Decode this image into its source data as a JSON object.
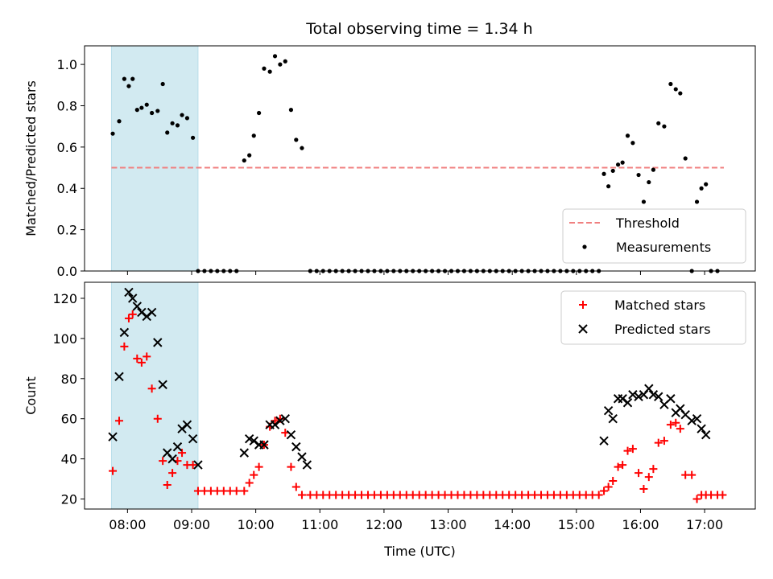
{
  "chart_data": [
    {
      "type": "scatter",
      "title": "Total observing time = 1.34 h",
      "xlabel": "",
      "ylabel": "Matched/Predicted stars",
      "xlim": [
        7.33,
        17.79
      ],
      "ylim": [
        0,
        1.09
      ],
      "yticks": [
        0.0,
        0.2,
        0.4,
        0.6,
        0.8,
        1.0
      ],
      "ytick_labels": [
        "0.0",
        "0.2",
        "0.4",
        "0.6",
        "0.8",
        "1.0"
      ],
      "shaded_span": [
        7.75,
        9.1
      ],
      "legend_position": "bottom-right",
      "threshold": {
        "name": "Threshold",
        "value": 0.5,
        "x_range": [
          7.75,
          17.3
        ],
        "color": "#f08080",
        "style": "dashed"
      },
      "series": [
        {
          "name": "Measurements",
          "marker": "dot",
          "color": "#000000",
          "points": [
            [
              7.77,
              0.665
            ],
            [
              7.87,
              0.725
            ],
            [
              7.95,
              0.93
            ],
            [
              8.02,
              0.895
            ],
            [
              8.08,
              0.93
            ],
            [
              8.15,
              0.78
            ],
            [
              8.22,
              0.79
            ],
            [
              8.3,
              0.805
            ],
            [
              8.38,
              0.765
            ],
            [
              8.47,
              0.775
            ],
            [
              8.55,
              0.905
            ],
            [
              8.62,
              0.67
            ],
            [
              8.7,
              0.715
            ],
            [
              8.78,
              0.705
            ],
            [
              8.85,
              0.755
            ],
            [
              8.93,
              0.74
            ],
            [
              9.02,
              0.645
            ],
            [
              9.1,
              0.0
            ],
            [
              9.2,
              0.0
            ],
            [
              9.3,
              0.0
            ],
            [
              9.4,
              0.0
            ],
            [
              9.5,
              0.0
            ],
            [
              9.6,
              0.0
            ],
            [
              9.7,
              0.0
            ],
            [
              9.82,
              0.535
            ],
            [
              9.9,
              0.56
            ],
            [
              9.97,
              0.655
            ],
            [
              10.05,
              0.765
            ],
            [
              10.13,
              0.98
            ],
            [
              10.22,
              0.965
            ],
            [
              10.3,
              1.04
            ],
            [
              10.38,
              1.0
            ],
            [
              10.46,
              1.015
            ],
            [
              10.55,
              0.78
            ],
            [
              10.63,
              0.635
            ],
            [
              10.72,
              0.595
            ],
            [
              10.85,
              0.0
            ],
            [
              10.95,
              0.0
            ],
            [
              11.05,
              0.0
            ],
            [
              11.15,
              0.0
            ],
            [
              11.25,
              0.0
            ],
            [
              11.35,
              0.0
            ],
            [
              11.45,
              0.0
            ],
            [
              11.55,
              0.0
            ],
            [
              11.65,
              0.0
            ],
            [
              11.75,
              0.0
            ],
            [
              11.85,
              0.0
            ],
            [
              11.95,
              0.0
            ],
            [
              12.05,
              0.0
            ],
            [
              12.15,
              0.0
            ],
            [
              12.25,
              0.0
            ],
            [
              12.35,
              0.0
            ],
            [
              12.45,
              0.0
            ],
            [
              12.55,
              0.0
            ],
            [
              12.65,
              0.0
            ],
            [
              12.75,
              0.0
            ],
            [
              12.85,
              0.0
            ],
            [
              12.95,
              0.0
            ],
            [
              13.05,
              0.0
            ],
            [
              13.15,
              0.0
            ],
            [
              13.25,
              0.0
            ],
            [
              13.35,
              0.0
            ],
            [
              13.45,
              0.0
            ],
            [
              13.55,
              0.0
            ],
            [
              13.65,
              0.0
            ],
            [
              13.75,
              0.0
            ],
            [
              13.85,
              0.0
            ],
            [
              13.95,
              0.0
            ],
            [
              14.05,
              0.0
            ],
            [
              14.15,
              0.0
            ],
            [
              14.25,
              0.0
            ],
            [
              14.35,
              0.0
            ],
            [
              14.45,
              0.0
            ],
            [
              14.55,
              0.0
            ],
            [
              14.65,
              0.0
            ],
            [
              14.75,
              0.0
            ],
            [
              14.85,
              0.0
            ],
            [
              14.95,
              0.0
            ],
            [
              15.05,
              0.0
            ],
            [
              15.15,
              0.0
            ],
            [
              15.25,
              0.0
            ],
            [
              15.35,
              0.0
            ],
            [
              15.43,
              0.47
            ],
            [
              15.5,
              0.41
            ],
            [
              15.57,
              0.485
            ],
            [
              15.65,
              0.515
            ],
            [
              15.72,
              0.525
            ],
            [
              15.8,
              0.655
            ],
            [
              15.88,
              0.62
            ],
            [
              15.97,
              0.465
            ],
            [
              16.05,
              0.335
            ],
            [
              16.13,
              0.43
            ],
            [
              16.2,
              0.49
            ],
            [
              16.28,
              0.715
            ],
            [
              16.37,
              0.7
            ],
            [
              16.47,
              0.905
            ],
            [
              16.55,
              0.88
            ],
            [
              16.62,
              0.86
            ],
            [
              16.7,
              0.545
            ],
            [
              16.8,
              0.0
            ],
            [
              16.88,
              0.335
            ],
            [
              16.95,
              0.4
            ],
            [
              17.02,
              0.42
            ],
            [
              17.1,
              0.0
            ],
            [
              17.2,
              0.0
            ]
          ]
        }
      ]
    },
    {
      "type": "scatter",
      "title": "",
      "xlabel": "Time (UTC)",
      "ylabel": "Count",
      "xlim": [
        7.33,
        17.79
      ],
      "ylim": [
        15,
        128
      ],
      "yticks": [
        20,
        40,
        60,
        80,
        100,
        120
      ],
      "ytick_labels": [
        "20",
        "40",
        "60",
        "80",
        "100",
        "120"
      ],
      "xticks": [
        8,
        9,
        10,
        11,
        12,
        13,
        14,
        15,
        16,
        17
      ],
      "xtick_labels": [
        "08:00",
        "09:00",
        "10:00",
        "11:00",
        "12:00",
        "13:00",
        "14:00",
        "15:00",
        "16:00",
        "17:00"
      ],
      "shaded_span": [
        7.75,
        9.1
      ],
      "legend_position": "top-right",
      "series": [
        {
          "name": "Matched stars",
          "marker": "plus",
          "color": "#ff0000",
          "points": [
            [
              7.77,
              34
            ],
            [
              7.87,
              59
            ],
            [
              7.95,
              96
            ],
            [
              8.02,
              110
            ],
            [
              8.08,
              112
            ],
            [
              8.15,
              90
            ],
            [
              8.22,
              88
            ],
            [
              8.3,
              91
            ],
            [
              8.38,
              75
            ],
            [
              8.47,
              60
            ],
            [
              8.55,
              39
            ],
            [
              8.62,
              27
            ],
            [
              8.7,
              33
            ],
            [
              8.78,
              39
            ],
            [
              8.85,
              43
            ],
            [
              8.93,
              37
            ],
            [
              9.02,
              37
            ],
            [
              9.1,
              24
            ],
            [
              9.2,
              24
            ],
            [
              9.3,
              24
            ],
            [
              9.4,
              24
            ],
            [
              9.5,
              24
            ],
            [
              9.6,
              24
            ],
            [
              9.7,
              24
            ],
            [
              9.82,
              24
            ],
            [
              9.9,
              28
            ],
            [
              9.97,
              32
            ],
            [
              10.05,
              36
            ],
            [
              10.13,
              47
            ],
            [
              10.22,
              56
            ],
            [
              10.3,
              59
            ],
            [
              10.38,
              60
            ],
            [
              10.46,
              53
            ],
            [
              10.55,
              36
            ],
            [
              10.63,
              26
            ],
            [
              10.72,
              22
            ],
            [
              10.85,
              22
            ],
            [
              10.95,
              22
            ],
            [
              11.05,
              22
            ],
            [
              11.15,
              22
            ],
            [
              11.25,
              22
            ],
            [
              11.35,
              22
            ],
            [
              11.45,
              22
            ],
            [
              11.55,
              22
            ],
            [
              11.65,
              22
            ],
            [
              11.75,
              22
            ],
            [
              11.85,
              22
            ],
            [
              11.95,
              22
            ],
            [
              12.05,
              22
            ],
            [
              12.15,
              22
            ],
            [
              12.25,
              22
            ],
            [
              12.35,
              22
            ],
            [
              12.45,
              22
            ],
            [
              12.55,
              22
            ],
            [
              12.65,
              22
            ],
            [
              12.75,
              22
            ],
            [
              12.85,
              22
            ],
            [
              12.95,
              22
            ],
            [
              13.05,
              22
            ],
            [
              13.15,
              22
            ],
            [
              13.25,
              22
            ],
            [
              13.35,
              22
            ],
            [
              13.45,
              22
            ],
            [
              13.55,
              22
            ],
            [
              13.65,
              22
            ],
            [
              13.75,
              22
            ],
            [
              13.85,
              22
            ],
            [
              13.95,
              22
            ],
            [
              14.05,
              22
            ],
            [
              14.15,
              22
            ],
            [
              14.25,
              22
            ],
            [
              14.35,
              22
            ],
            [
              14.45,
              22
            ],
            [
              14.55,
              22
            ],
            [
              14.65,
              22
            ],
            [
              14.75,
              22
            ],
            [
              14.85,
              22
            ],
            [
              14.95,
              22
            ],
            [
              15.05,
              22
            ],
            [
              15.15,
              22
            ],
            [
              15.25,
              22
            ],
            [
              15.35,
              22
            ],
            [
              15.43,
              24
            ],
            [
              15.5,
              26
            ],
            [
              15.57,
              29
            ],
            [
              15.65,
              36
            ],
            [
              15.72,
              37
            ],
            [
              15.8,
              44
            ],
            [
              15.88,
              45
            ],
            [
              15.97,
              33
            ],
            [
              16.05,
              25
            ],
            [
              16.13,
              31
            ],
            [
              16.2,
              35
            ],
            [
              16.28,
              48
            ],
            [
              16.37,
              49
            ],
            [
              16.47,
              57
            ],
            [
              16.55,
              58
            ],
            [
              16.62,
              55
            ],
            [
              16.7,
              32
            ],
            [
              16.8,
              32
            ],
            [
              16.88,
              20
            ],
            [
              16.95,
              22
            ],
            [
              17.02,
              22
            ],
            [
              17.1,
              22
            ],
            [
              17.2,
              22
            ],
            [
              17.28,
              22
            ]
          ]
        },
        {
          "name": "Predicted stars",
          "marker": "x",
          "color": "#000000",
          "points": [
            [
              7.77,
              51
            ],
            [
              7.87,
              81
            ],
            [
              7.95,
              103
            ],
            [
              8.02,
              123
            ],
            [
              8.08,
              120
            ],
            [
              8.15,
              116
            ],
            [
              8.22,
              113
            ],
            [
              8.3,
              111
            ],
            [
              8.38,
              113
            ],
            [
              8.47,
              98
            ],
            [
              8.55,
              77
            ],
            [
              8.62,
              43
            ],
            [
              8.7,
              40
            ],
            [
              8.78,
              46
            ],
            [
              8.85,
              55
            ],
            [
              8.93,
              57
            ],
            [
              9.02,
              50
            ],
            [
              9.1,
              37
            ],
            [
              9.82,
              43
            ],
            [
              9.9,
              50
            ],
            [
              9.97,
              49
            ],
            [
              10.05,
              47
            ],
            [
              10.13,
              47
            ],
            [
              10.22,
              57
            ],
            [
              10.3,
              57
            ],
            [
              10.38,
              59
            ],
            [
              10.46,
              60
            ],
            [
              10.55,
              52
            ],
            [
              10.63,
              46
            ],
            [
              10.72,
              41
            ],
            [
              10.8,
              37
            ],
            [
              15.43,
              49
            ],
            [
              15.5,
              64
            ],
            [
              15.57,
              60
            ],
            [
              15.65,
              70
            ],
            [
              15.72,
              70
            ],
            [
              15.8,
              68
            ],
            [
              15.88,
              72
            ],
            [
              15.97,
              71
            ],
            [
              16.05,
              72
            ],
            [
              16.13,
              75
            ],
            [
              16.2,
              72
            ],
            [
              16.28,
              71
            ],
            [
              16.37,
              67
            ],
            [
              16.47,
              70
            ],
            [
              16.55,
              63
            ],
            [
              16.62,
              65
            ],
            [
              16.7,
              62
            ],
            [
              16.8,
              59
            ],
            [
              16.88,
              60
            ],
            [
              16.95,
              55
            ],
            [
              17.02,
              52
            ]
          ]
        }
      ]
    }
  ]
}
